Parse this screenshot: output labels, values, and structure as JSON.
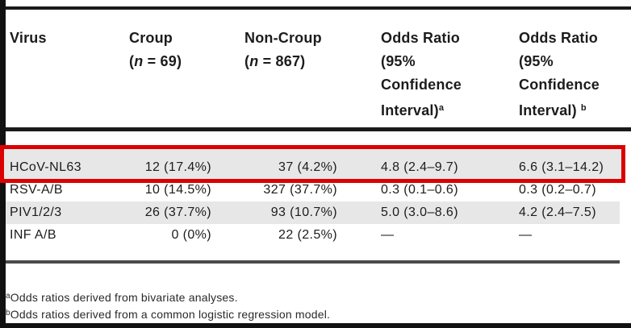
{
  "table": {
    "columns": {
      "virus": {
        "title": "Virus"
      },
      "croup": {
        "title": "Croup",
        "n_prefix": "(",
        "n_italic": "n",
        "n_suffix": " = 69)"
      },
      "non_croup": {
        "title": "Non-Croup",
        "n_prefix": "(",
        "n_italic": "n",
        "n_suffix": " = 867)"
      },
      "or_a": {
        "line1": "Odds Ratio",
        "line2": "(95%",
        "line3": "Confidence",
        "line4": "Interval)",
        "sup": "a"
      },
      "or_b": {
        "line1": "Odds Ratio",
        "line2": "(95%",
        "line3": "Confidence",
        "line4": "Interval)",
        "sup": "b"
      }
    },
    "rows": [
      {
        "virus": "HCoV-NL63",
        "croup": "12 (17.4%)",
        "non_croup": "37 (4.2%)",
        "or_a": "4.8 (2.4–9.7)",
        "or_b": "6.6 (3.1–14.2)"
      },
      {
        "virus": "RSV-A/B",
        "croup": "10 (14.5%)",
        "non_croup": "327 (37.7%)",
        "or_a": "0.3 (0.1–0.6)",
        "or_b": "0.3 (0.2–0.7)"
      },
      {
        "virus": "PIV1/2/3",
        "croup": "26 (37.7%)",
        "non_croup": "93 (10.7%)",
        "or_a": "5.0 (3.0–8.6)",
        "or_b": "4.2 (2.4–7.5)"
      },
      {
        "virus": "INF A/B",
        "croup": "0 (0%)",
        "non_croup": "22 (2.5%)",
        "or_a": "—",
        "or_b": "—"
      }
    ],
    "footnotes": [
      {
        "sup": "a",
        "text": "Odds ratios derived from bivariate analyses."
      },
      {
        "sup": "b",
        "text": "Odds ratios derived from a common logistic regression model."
      }
    ]
  },
  "highlight": {
    "highlighted_row": "HCoV-NL63",
    "box_color": "#dd0000"
  },
  "colors": {
    "row_shade": "#e7e7e7",
    "rule_dark": "#1a1a1a",
    "rule_gray": "#4a4a4a",
    "page_edge": "#111111"
  }
}
